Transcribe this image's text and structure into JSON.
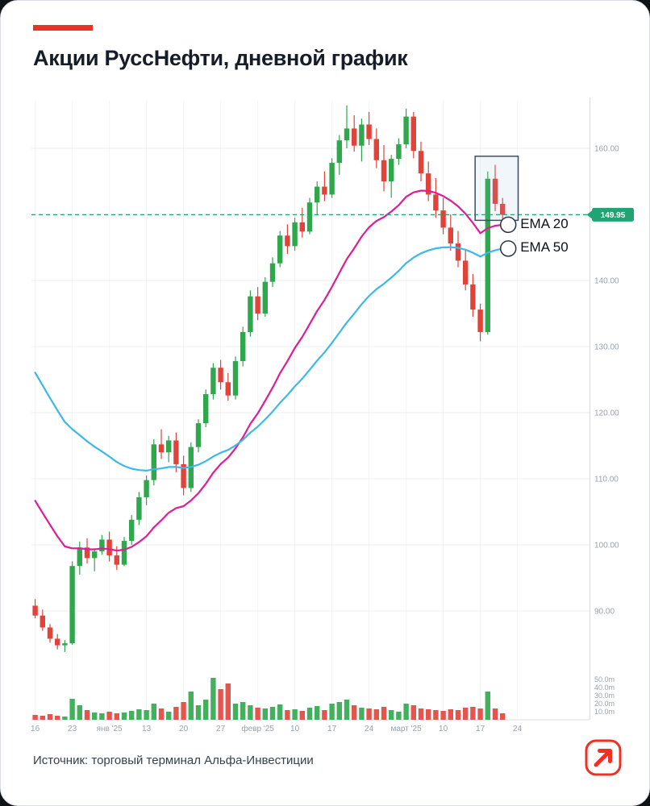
{
  "page": {
    "title": "Акции РуссНефти, дневной график",
    "source": "Источник: торговый терминал Альфа-Инвестиции",
    "accent_color": "#EF3124"
  },
  "chart_data": {
    "type": "candlestick",
    "title": "Акции РуссНефти, дневной график",
    "x_axis": {
      "tick_indices": [
        0,
        5,
        10,
        15,
        20,
        25,
        30,
        35,
        40,
        45,
        50,
        55,
        60,
        65
      ],
      "tick_labels": [
        "16",
        "23",
        "янв '25",
        "13",
        "20",
        "27",
        "февр '25",
        "10",
        "17",
        "24",
        "март '25",
        "10",
        "17",
        "24"
      ]
    },
    "y_axis": {
      "ticks": [
        {
          "value": 160,
          "label": "160.00"
        },
        {
          "value": 150,
          "label": "150.00"
        },
        {
          "value": 140,
          "label": "140.00"
        },
        {
          "value": 130,
          "label": "130.00"
        },
        {
          "value": 120,
          "label": "120.00"
        },
        {
          "value": 110,
          "label": "110.00"
        },
        {
          "value": 100,
          "label": "100.00"
        },
        {
          "value": 90,
          "label": "90.00"
        }
      ],
      "ylim": [
        83,
        168
      ]
    },
    "volume_axis": {
      "ticks": [
        {
          "value": 50,
          "label": "50.0m"
        },
        {
          "value": 40,
          "label": "40.0m"
        },
        {
          "value": 30,
          "label": "30.0m"
        },
        {
          "value": 20,
          "label": "20.0m"
        },
        {
          "value": 10,
          "label": "10.0m"
        }
      ]
    },
    "price_line": {
      "value": 149.95,
      "label": "149.95",
      "color": "#23a273"
    },
    "colors": {
      "up": "#2fa74c",
      "down": "#e0433a",
      "grid": "#e9edf1",
      "grid_vertical": "#f2f4f6",
      "axis_line": "#d8dce1",
      "axis_text": "#98a1ab",
      "annotation": "#3d4f63"
    },
    "overlays": [
      {
        "name": "EMA 20",
        "color": "#df1d96",
        "seed": 108.5,
        "alpha": 0.0952
      },
      {
        "name": "EMA 50",
        "color": "#3cb9ea",
        "seed": 128.0,
        "alpha": 0.05
      }
    ],
    "annotations": {
      "highlight_box": {
        "start_index": 59.8,
        "end_index": 65.6,
        "price_top": 158.8,
        "price_bottom": 149.1
      }
    },
    "candles": {
      "fields": [
        "open",
        "high",
        "low",
        "close",
        "volume_m"
      ],
      "ohlcv": [
        [
          90.8,
          91.8,
          88.9,
          89.3,
          6
        ],
        [
          89.3,
          90.2,
          87.0,
          87.5,
          5
        ],
        [
          87.5,
          88.0,
          85.2,
          85.8,
          7
        ],
        [
          85.8,
          86.5,
          84.2,
          84.8,
          5
        ],
        [
          84.8,
          85.6,
          83.8,
          85.1,
          4
        ],
        [
          85.1,
          97.5,
          84.9,
          96.8,
          26
        ],
        [
          96.8,
          100.5,
          95.5,
          99.6,
          18
        ],
        [
          99.6,
          101.0,
          97.2,
          98.0,
          12
        ],
        [
          98.0,
          99.5,
          96.0,
          99.0,
          9
        ],
        [
          99.0,
          101.5,
          98.5,
          100.8,
          8
        ],
        [
          100.8,
          102.0,
          97.5,
          98.4,
          10
        ],
        [
          98.4,
          99.8,
          96.2,
          97.0,
          8
        ],
        [
          97.0,
          101.2,
          96.8,
          100.6,
          9
        ],
        [
          100.6,
          104.5,
          100.0,
          103.8,
          11
        ],
        [
          103.8,
          108.0,
          103.0,
          107.2,
          13
        ],
        [
          107.2,
          110.5,
          106.0,
          109.8,
          12
        ],
        [
          109.8,
          116.0,
          109.0,
          115.2,
          20
        ],
        [
          115.2,
          117.5,
          113.0,
          114.0,
          14
        ],
        [
          114.0,
          116.5,
          112.5,
          115.8,
          10
        ],
        [
          115.8,
          117.0,
          111.0,
          112.2,
          16
        ],
        [
          112.2,
          113.5,
          107.5,
          108.6,
          22
        ],
        [
          108.6,
          115.5,
          108.0,
          114.8,
          35
        ],
        [
          114.8,
          119.0,
          114.0,
          118.4,
          18
        ],
        [
          118.4,
          123.5,
          117.8,
          122.8,
          25
        ],
        [
          122.8,
          127.5,
          122.0,
          126.8,
          52
        ],
        [
          126.8,
          128.0,
          123.5,
          124.6,
          38
        ],
        [
          124.6,
          126.0,
          121.8,
          122.6,
          45
        ],
        [
          122.6,
          128.5,
          122.0,
          127.8,
          20
        ],
        [
          127.8,
          133.0,
          127.0,
          132.2,
          22
        ],
        [
          132.2,
          138.5,
          131.5,
          137.6,
          18
        ],
        [
          137.6,
          139.0,
          134.0,
          135.0,
          15
        ],
        [
          135.0,
          140.5,
          134.5,
          139.8,
          14
        ],
        [
          139.8,
          143.5,
          139.0,
          142.6,
          16
        ],
        [
          142.6,
          147.5,
          142.0,
          146.8,
          19
        ],
        [
          146.8,
          148.5,
          144.0,
          145.2,
          12
        ],
        [
          145.2,
          149.5,
          144.5,
          148.8,
          13
        ],
        [
          148.8,
          151.0,
          146.5,
          147.4,
          11
        ],
        [
          147.4,
          152.5,
          147.0,
          151.8,
          15
        ],
        [
          151.8,
          155.0,
          150.0,
          154.2,
          17
        ],
        [
          154.2,
          156.5,
          152.0,
          153.0,
          12
        ],
        [
          153.0,
          158.5,
          152.5,
          157.8,
          20
        ],
        [
          157.8,
          162.0,
          156.0,
          161.2,
          22
        ],
        [
          161.2,
          166.5,
          160.0,
          163.0,
          25
        ],
        [
          163.0,
          165.0,
          159.5,
          160.4,
          18
        ],
        [
          160.4,
          164.5,
          158.0,
          163.6,
          15
        ],
        [
          163.6,
          165.5,
          160.5,
          161.4,
          14
        ],
        [
          161.4,
          163.0,
          157.0,
          158.2,
          13
        ],
        [
          158.2,
          160.5,
          153.5,
          155.0,
          16
        ],
        [
          155.0,
          159.0,
          152.5,
          158.4,
          12
        ],
        [
          158.4,
          161.5,
          157.5,
          160.6,
          10
        ],
        [
          160.6,
          166.0,
          160.0,
          164.8,
          20
        ],
        [
          164.8,
          165.5,
          158.5,
          159.6,
          18
        ],
        [
          159.6,
          161.0,
          155.0,
          156.2,
          14
        ],
        [
          156.2,
          158.0,
          152.0,
          153.0,
          13
        ],
        [
          153.0,
          155.5,
          149.5,
          150.6,
          12
        ],
        [
          150.6,
          152.5,
          147.0,
          148.0,
          11
        ],
        [
          148.0,
          150.0,
          144.5,
          145.6,
          13
        ],
        [
          145.6,
          147.5,
          142.0,
          143.0,
          12
        ],
        [
          143.0,
          144.5,
          138.5,
          139.4,
          15
        ],
        [
          139.4,
          141.0,
          134.5,
          135.6,
          16
        ],
        [
          135.6,
          136.5,
          130.8,
          132.2,
          14
        ],
        [
          132.2,
          156.5,
          131.8,
          155.4,
          35
        ],
        [
          155.4,
          157.5,
          150.5,
          151.6,
          14
        ],
        [
          151.6,
          152.5,
          148.9,
          149.95,
          8
        ]
      ]
    }
  },
  "logo": {
    "name": "Альфа-Инвестиции",
    "icon": "arrow-up-right-icon"
  }
}
